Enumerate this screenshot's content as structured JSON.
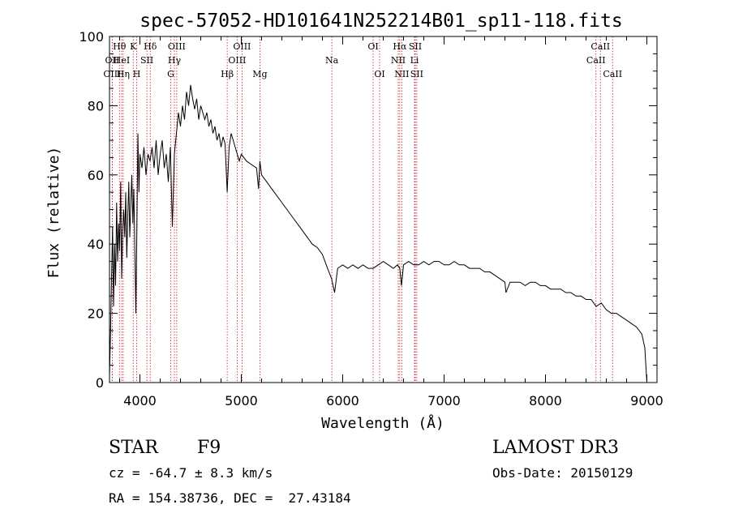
{
  "chart_data": {
    "type": "line",
    "title": "spec-57052-HD101641N252214B01_sp11-118.fits",
    "xlabel": "Wavelength (Å)",
    "ylabel": "Flux (relative)",
    "xlim": [
      3700,
      9100
    ],
    "ylim": [
      0,
      100
    ],
    "x_ticks": [
      4000,
      5000,
      6000,
      7000,
      8000,
      9000
    ],
    "y_ticks": [
      0,
      20,
      40,
      60,
      80,
      100
    ],
    "series": [
      {
        "name": "spectrum",
        "x": [
          3700,
          3710,
          3720,
          3730,
          3740,
          3750,
          3760,
          3770,
          3780,
          3790,
          3800,
          3810,
          3820,
          3830,
          3840,
          3850,
          3860,
          3870,
          3880,
          3890,
          3900,
          3910,
          3920,
          3930,
          3940,
          3950,
          3960,
          3970,
          3980,
          3990,
          4000,
          4020,
          4040,
          4060,
          4080,
          4100,
          4120,
          4140,
          4160,
          4180,
          4200,
          4220,
          4240,
          4260,
          4280,
          4300,
          4320,
          4340,
          4360,
          4380,
          4400,
          4420,
          4440,
          4460,
          4480,
          4500,
          4520,
          4540,
          4560,
          4580,
          4600,
          4620,
          4640,
          4660,
          4680,
          4700,
          4720,
          4740,
          4760,
          4780,
          4800,
          4820,
          4840,
          4861,
          4880,
          4900,
          4920,
          4940,
          4960,
          4980,
          5000,
          5050,
          5100,
          5150,
          5170,
          5183,
          5200,
          5250,
          5300,
          5350,
          5400,
          5450,
          5500,
          5550,
          5600,
          5650,
          5700,
          5750,
          5800,
          5850,
          5890,
          5920,
          5950,
          6000,
          6050,
          6100,
          6150,
          6200,
          6250,
          6300,
          6350,
          6400,
          6450,
          6500,
          6540,
          6563,
          6580,
          6600,
          6650,
          6700,
          6750,
          6800,
          6850,
          6900,
          6950,
          7000,
          7050,
          7100,
          7150,
          7200,
          7250,
          7300,
          7350,
          7400,
          7450,
          7500,
          7550,
          7600,
          7610,
          7650,
          7700,
          7750,
          7800,
          7850,
          7900,
          7950,
          8000,
          8050,
          8100,
          8150,
          8200,
          8250,
          8300,
          8350,
          8400,
          8450,
          8500,
          8550,
          8600,
          8650,
          8700,
          8750,
          8800,
          8850,
          8900,
          8950,
          8980,
          9000
        ],
        "y": [
          2,
          15,
          30,
          45,
          22,
          40,
          28,
          52,
          35,
          46,
          38,
          58,
          30,
          44,
          50,
          42,
          55,
          36,
          48,
          58,
          42,
          52,
          60,
          46,
          56,
          38,
          20,
          45,
          72,
          55,
          66,
          62,
          68,
          60,
          66,
          64,
          68,
          62,
          70,
          60,
          66,
          70,
          62,
          66,
          58,
          68,
          45,
          66,
          72,
          78,
          74,
          80,
          76,
          84,
          80,
          86,
          82,
          79,
          82,
          76,
          80,
          78,
          76,
          78,
          74,
          76,
          72,
          74,
          70,
          72,
          68,
          71,
          69,
          55,
          68,
          72,
          70,
          68,
          66,
          64,
          66,
          64,
          63,
          62,
          56,
          64,
          60,
          58,
          56,
          54,
          52,
          50,
          48,
          46,
          44,
          42,
          40,
          39,
          37,
          33,
          30,
          26,
          33,
          34,
          33,
          34,
          33,
          34,
          33,
          33,
          34,
          35,
          34,
          33,
          34,
          33,
          28,
          34,
          35,
          34,
          34,
          35,
          34,
          35,
          35,
          34,
          34,
          35,
          34,
          34,
          33,
          33,
          33,
          32,
          32,
          31,
          30,
          29,
          26,
          29,
          29,
          29,
          28,
          29,
          29,
          28,
          28,
          27,
          27,
          27,
          26,
          26,
          25,
          25,
          24,
          24,
          22,
          23,
          21,
          20,
          20,
          19,
          18,
          17,
          16,
          14,
          10,
          0
        ]
      }
    ],
    "spectral_lines": [
      {
        "label": "Hθ",
        "x": 3798,
        "row": 1
      },
      {
        "label": "OII",
        "x": 3727,
        "row": 2
      },
      {
        "label": "OIII",
        "x": 3727,
        "row": 3
      },
      {
        "label": "K",
        "x": 3934,
        "row": 1
      },
      {
        "label": "HeI",
        "x": 3820,
        "row": 2
      },
      {
        "label": "Hη",
        "x": 3835,
        "row": 3
      },
      {
        "label": "Hδ",
        "x": 4102,
        "row": 1
      },
      {
        "label": "SII",
        "x": 4069,
        "row": 2
      },
      {
        "label": "H",
        "x": 3968,
        "row": 3
      },
      {
        "label": "OIII",
        "x": 4363,
        "row": 1
      },
      {
        "label": "Hγ",
        "x": 4340,
        "row": 2
      },
      {
        "label": "G",
        "x": 4304,
        "row": 3
      },
      {
        "label": "OIII",
        "x": 5007,
        "row": 1
      },
      {
        "label": "OIII",
        "x": 4959,
        "row": 2
      },
      {
        "label": "Hβ",
        "x": 4861,
        "row": 3
      },
      {
        "label": "Mg",
        "x": 5183,
        "row": 3
      },
      {
        "label": "Na",
        "x": 5893,
        "row": 2
      },
      {
        "label": "OI",
        "x": 6300,
        "row": 1
      },
      {
        "label": "OI",
        "x": 6364,
        "row": 3
      },
      {
        "label": "Hα",
        "x": 6563,
        "row": 1
      },
      {
        "label": "SII",
        "x": 6716,
        "row": 1
      },
      {
        "label": "NII",
        "x": 6548,
        "row": 2
      },
      {
        "label": "Li",
        "x": 6708,
        "row": 2
      },
      {
        "label": "NII",
        "x": 6583,
        "row": 3
      },
      {
        "label": "SII",
        "x": 6731,
        "row": 3
      },
      {
        "label": "CaII",
        "x": 8542,
        "row": 1
      },
      {
        "label": "CaII",
        "x": 8498,
        "row": 2
      },
      {
        "label": "CaII",
        "x": 8662,
        "row": 3
      }
    ]
  },
  "footer": {
    "object_type": "STAR",
    "subclass": "F9",
    "survey": "LAMOST DR3",
    "velocity": "cz = -64.7 ± 8.3 km/s",
    "obs_date": "Obs-Date: 20150129",
    "coords": "RA = 154.38736, DEC =  27.43184"
  },
  "colors": {
    "spectrum": "#000000",
    "line_markers": "#c8141e",
    "axes": "#000000"
  }
}
